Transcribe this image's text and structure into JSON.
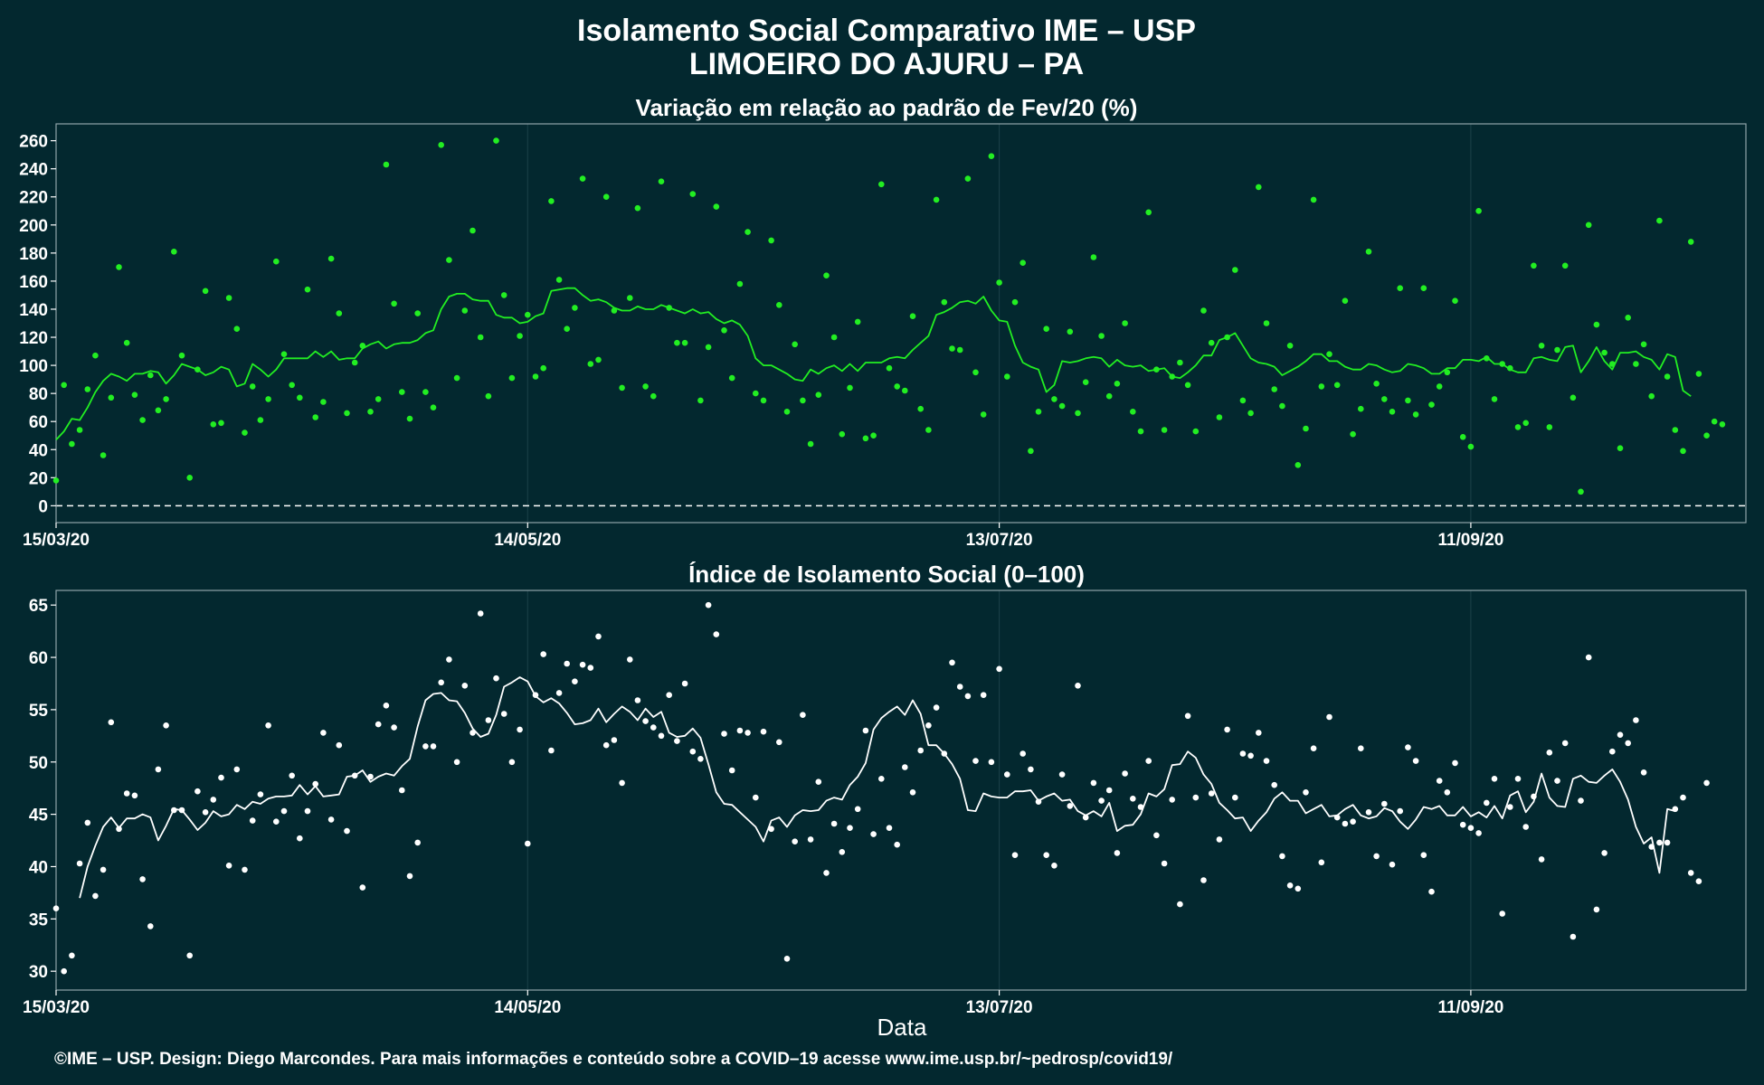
{
  "colors": {
    "background": "#03282f",
    "panel_border": "#8fa3a8",
    "grid": "#1c4249",
    "text": "#ffffff",
    "top_series": "#22ee22",
    "bottom_series": "#ffffff"
  },
  "header": {
    "title_line1": "Isolamento Social Comparativo IME – USP",
    "title_line2": "LIMOEIRO DO AJURU – PA"
  },
  "footer": {
    "xlabel": "Data",
    "credit": "©IME – USP. Design: Diego Marcondes. Para mais informações e conteúdo sobre a COVID–19 acesse www.ime.usp.br/~pedrosp/covid19/"
  },
  "chart_data": [
    {
      "type": "scatter",
      "title": "Variação em relação ao padrão de Fev/20 (%)",
      "x_start": "2020-03-15",
      "x_end": "2020-10-16",
      "x_ticks": [
        "15/03/20",
        "14/05/20",
        "13/07/20",
        "11/09/20"
      ],
      "x_tick_dates": [
        "2020-03-15",
        "2020-05-14",
        "2020-07-13",
        "2020-09-11"
      ],
      "ylim": [
        -12,
        272
      ],
      "y_ticks": [
        0,
        20,
        40,
        60,
        80,
        100,
        120,
        140,
        160,
        180,
        200,
        220,
        240,
        260
      ],
      "reference_line": 0,
      "grid": true,
      "series": [
        {
          "kind": "points",
          "values": [
            18,
            86,
            44,
            54,
            83,
            107,
            36,
            77,
            170,
            116,
            79,
            61,
            93,
            68,
            76,
            181,
            107,
            20,
            97,
            153,
            58,
            59,
            148,
            126,
            52,
            85,
            61,
            76,
            174,
            108,
            86,
            77,
            154,
            63,
            74,
            176,
            137,
            66,
            102,
            114,
            67,
            76,
            243,
            144,
            81,
            62,
            137,
            81,
            70,
            257,
            175,
            91,
            139,
            196,
            120,
            78,
            260,
            150,
            91,
            121,
            136,
            92,
            98,
            217,
            161,
            126,
            141,
            233,
            101,
            104,
            220,
            139,
            84,
            148,
            212,
            85,
            78,
            231,
            141,
            116,
            116,
            222,
            75,
            113,
            213,
            125,
            91,
            158,
            195,
            80,
            75,
            189,
            143,
            67,
            115,
            75,
            44,
            79,
            164,
            120,
            51,
            84,
            131,
            48,
            50,
            229,
            98,
            85,
            82,
            135,
            69,
            54,
            218,
            145,
            112,
            111,
            233,
            95,
            65,
            249,
            159,
            92,
            145,
            173,
            39,
            67,
            126,
            76,
            71,
            124,
            66,
            88,
            177,
            121,
            78,
            87,
            130,
            67,
            53,
            209,
            97,
            54,
            92,
            102,
            86,
            53,
            139,
            116,
            63,
            120,
            168,
            75,
            66,
            227,
            130,
            83,
            71,
            114,
            29,
            55,
            218,
            85,
            108,
            86,
            146,
            51,
            69,
            181,
            87,
            76,
            67,
            155,
            75,
            65,
            155,
            72,
            85,
            95,
            146,
            49,
            42,
            210,
            105,
            76,
            101,
            98,
            56,
            59,
            171,
            114,
            56,
            111,
            171,
            77,
            10,
            200,
            129,
            109,
            101,
            41,
            134,
            101,
            115,
            78,
            203,
            92,
            54,
            39,
            188,
            94,
            50,
            60,
            58
          ]
        },
        {
          "kind": "moving_average",
          "start_index": 0,
          "values": [
            47,
            53,
            62,
            61,
            70,
            81,
            89,
            94,
            92,
            89,
            94,
            94,
            96,
            95,
            87,
            93,
            101,
            99,
            97,
            93,
            95,
            99,
            97,
            85,
            87,
            101,
            97,
            92,
            97,
            105,
            105,
            105,
            105,
            110,
            106,
            110,
            104,
            105,
            105,
            112,
            115,
            117,
            112,
            115,
            116,
            116,
            118,
            123,
            125,
            140,
            149,
            151,
            151,
            147,
            146,
            146,
            136,
            134,
            134,
            130,
            131,
            135,
            137,
            153,
            154,
            155,
            155,
            150,
            146,
            147,
            145,
            141,
            139,
            139,
            142,
            140,
            140,
            143,
            141,
            139,
            137,
            140,
            137,
            138,
            133,
            130,
            132,
            129,
            121,
            105,
            100,
            100,
            97,
            94,
            90,
            89,
            97,
            94,
            98,
            100,
            96,
            101,
            96,
            102,
            102,
            102,
            105,
            106,
            105,
            111,
            116,
            121,
            136,
            138,
            141,
            145,
            146,
            144,
            149,
            139,
            132,
            131,
            114,
            102,
            99,
            97,
            81,
            86,
            103,
            102,
            103,
            105,
            106,
            105,
            99,
            104,
            100,
            99,
            100,
            96,
            97,
            98,
            92,
            91,
            95,
            100,
            107,
            107,
            118,
            120,
            123,
            114,
            105,
            102,
            101,
            99,
            93,
            96,
            99,
            103,
            108,
            108,
            103,
            103,
            99,
            97,
            97,
            101,
            100,
            97,
            95,
            96,
            101,
            100,
            98,
            94,
            94,
            98,
            98,
            104,
            104,
            103,
            106,
            101,
            101,
            97,
            95,
            95,
            105,
            106,
            104,
            103,
            113,
            114,
            95,
            103,
            113,
            103,
            97,
            109,
            109,
            110,
            106,
            104,
            97,
            108,
            106,
            82,
            78
          ]
        }
      ]
    },
    {
      "type": "scatter",
      "title": "Índice de Isolamento Social (0–100)",
      "x_start": "2020-03-15",
      "x_end": "2020-10-16",
      "x_ticks": [
        "15/03/20",
        "14/05/20",
        "13/07/20",
        "11/09/20"
      ],
      "x_tick_dates": [
        "2020-03-15",
        "2020-05-14",
        "2020-07-13",
        "2020-09-11"
      ],
      "ylim": [
        28.2,
        66.4
      ],
      "y_ticks": [
        30,
        35,
        40,
        45,
        50,
        55,
        60,
        65
      ],
      "grid": true,
      "series": [
        {
          "kind": "points",
          "values": [
            36,
            30,
            31.5,
            40.3,
            44.2,
            37.2,
            39.7,
            53.8,
            43.6,
            47,
            46.8,
            38.8,
            34.3,
            49.3,
            53.5,
            45.4,
            45.4,
            31.5,
            47.2,
            45.2,
            46.4,
            48.5,
            40.1,
            49.3,
            39.7,
            44.4,
            46.9,
            53.5,
            44.3,
            45.3,
            48.7,
            42.7,
            45.3,
            47.9,
            52.8,
            44.5,
            51.6,
            43.4,
            48.7,
            38,
            48.6,
            53.6,
            55.4,
            53.3,
            47.3,
            39.1,
            42.3,
            51.5,
            51.5,
            57.6,
            59.8,
            50,
            57.3,
            52.8,
            64.2,
            54,
            58,
            54.6,
            50,
            53.1,
            42.2,
            56.4,
            60.3,
            51.1,
            56.6,
            59.4,
            57.7,
            59.3,
            59,
            62,
            51.6,
            52.1,
            48,
            59.8,
            55.9,
            53.9,
            53.3,
            52.5,
            56.4,
            52,
            57.5,
            51,
            50.3,
            65,
            62.2,
            52.7,
            49.2,
            53,
            52.8,
            46.6,
            52.9,
            43.6,
            51.9,
            31.2,
            42.4,
            54.5,
            42.6,
            48.1,
            39.4,
            44.1,
            41.4,
            43.7,
            45.5,
            53,
            43.1,
            48.4,
            43.7,
            42.1,
            49.5,
            47.1,
            51.1,
            53.5,
            55.2,
            50.8,
            59.5,
            57.2,
            56.3,
            50.1,
            56.4,
            50,
            58.9,
            48.8,
            41.1,
            50.8,
            49.3,
            46.2,
            41.1,
            40.1,
            48.8,
            45.8,
            57.3,
            44.7,
            48,
            46.3,
            47.3,
            41.3,
            48.9,
            46.5,
            45.7,
            50.1,
            43,
            40.3,
            46.4,
            36.4,
            54.4,
            46.6,
            38.7,
            47,
            42.6,
            53.1,
            46.6,
            50.8,
            50.6,
            52.8,
            50.1,
            47.8,
            41,
            38.2,
            37.9,
            47.1,
            51.3,
            40.4,
            54.3,
            44.7,
            44.1,
            44.3,
            51.3,
            45.2,
            41,
            46,
            40.2,
            45.3,
            51.4,
            50.1,
            41.1,
            37.6,
            48.2,
            47.1,
            49.9,
            44,
            43.7,
            43.2,
            46.1,
            48.4,
            35.5,
            45.7,
            48.4,
            43.8,
            46.7,
            40.7,
            50.9,
            48.2,
            51.8,
            33.3,
            46.3,
            60,
            35.9,
            41.3,
            51,
            52.6,
            51.8,
            54,
            49,
            41.9,
            42.3,
            42.3,
            45.5,
            46.6,
            39.4,
            38.6,
            48
          ]
        },
        {
          "kind": "moving_average",
          "start_index": 3,
          "values": [
            37,
            40,
            42,
            43.8,
            44.7,
            43.7,
            44.6,
            44.6,
            45,
            44.7,
            42.5,
            43.9,
            45.5,
            45.4,
            44.5,
            43.5,
            44.2,
            45.3,
            44.8,
            45,
            45.9,
            45.5,
            46.2,
            46,
            46.5,
            46.7,
            46.7,
            46.8,
            47.8,
            46.9,
            47.7,
            46.7,
            46.8,
            46.9,
            48.6,
            48.7,
            49.2,
            48.1,
            48.6,
            48.9,
            48.7,
            49.6,
            50.3,
            53.4,
            55.9,
            56.5,
            56.6,
            55.9,
            55.8,
            54.7,
            53.2,
            52.4,
            52.7,
            54.5,
            57.2,
            57.6,
            58.1,
            57.7,
            56.3,
            55.7,
            56.1,
            55.6,
            54.7,
            53.6,
            53.7,
            54,
            55.1,
            53.8,
            54.6,
            55.3,
            54.8,
            54,
            55.1,
            54.3,
            54.8,
            52.8,
            52.4,
            52.5,
            53.2,
            52.3,
            49.8,
            47.1,
            46,
            45.9,
            45.2,
            44.5,
            43.8,
            42.4,
            44.4,
            44.7,
            43.8,
            44.9,
            45.4,
            45.3,
            45.4,
            46.3,
            46.6,
            46.4,
            47.8,
            48.6,
            49.9,
            53.1,
            54.2,
            54.8,
            55.3,
            54.5,
            55.9,
            54.6,
            51.6,
            51.6,
            50.8,
            49.8,
            48.4,
            45.4,
            45.3,
            47,
            46.7,
            46.6,
            46.6,
            47.2,
            47.2,
            47.3,
            46.3,
            46.7,
            47,
            46.3,
            46.4,
            45.3,
            44.9,
            45.3,
            44.8,
            46.1,
            43.4,
            43.9,
            44,
            45,
            47,
            46.7,
            47.4,
            49.7,
            49.8,
            51,
            50.4,
            48.8,
            47.9,
            46.1,
            45.4,
            44.6,
            44.7,
            43.4,
            44.4,
            45.2,
            46.5,
            47.1,
            46.3,
            46.3,
            45.1,
            45.5,
            45.9,
            44.8,
            44.9,
            45.5,
            45.9,
            44.9,
            44.6,
            44.8,
            45.6,
            45.3,
            44.3,
            43.6,
            44.5,
            45.7,
            45.5,
            45.8,
            44.9,
            44.9,
            45.7,
            44.8,
            45.2,
            44.7,
            45.8,
            44.6,
            46.8,
            47.2,
            45.2,
            46.2,
            48.9,
            46.6,
            45.8,
            45.7,
            48.4,
            48.7,
            48.1,
            48,
            48.7,
            49.3,
            48.1,
            46.4,
            43.8,
            42.2,
            42.8,
            39.4,
            45.5,
            45.3
          ]
        }
      ]
    }
  ]
}
